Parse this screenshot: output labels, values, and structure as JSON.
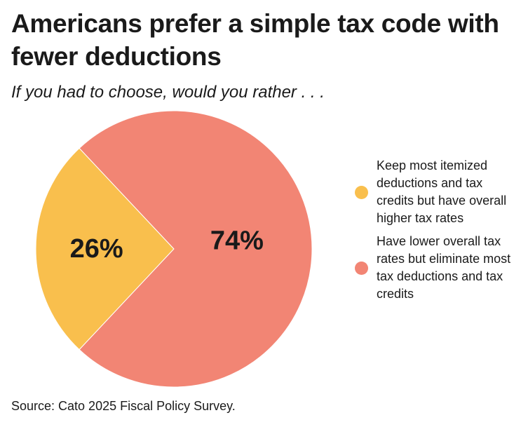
{
  "chart_data": {
    "type": "pie",
    "title": "Americans prefer a simple tax code with fewer deductions",
    "subtitle": "If you had to choose, would you rather . . .",
    "source": "Source: Cato 2025 Fiscal Policy Survey.",
    "slices": [
      {
        "label": "Keep most itemized deductions and tax credits but have overall higher tax rates",
        "value": 26,
        "display": "26%",
        "color": "#f9bf4d"
      },
      {
        "label": "Have lower overall tax rates but eliminate most tax deductions and tax credits",
        "value": 74,
        "display": "74%",
        "color": "#f28574"
      }
    ],
    "legend_position": "right"
  }
}
